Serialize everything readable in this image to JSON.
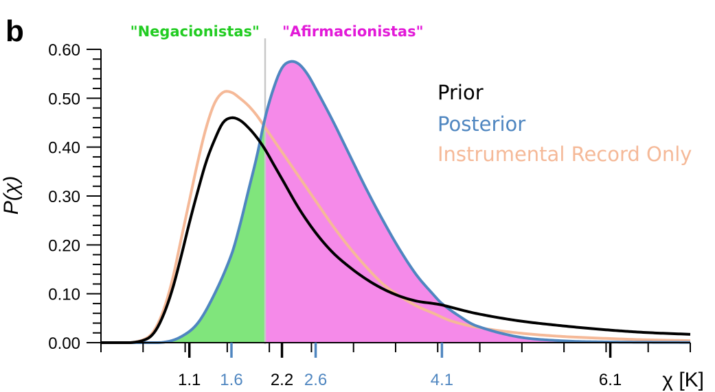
{
  "chart_data": {
    "type": "line",
    "panel_label": "b",
    "ylabel": "P(χ)",
    "xlabel": "χ [K]",
    "xlim": [
      0.05,
      7.05
    ],
    "ylim": [
      0,
      0.6
    ],
    "y_ticks": [
      "0.00",
      "0.10",
      "0.20",
      "0.30",
      "0.40",
      "0.50",
      "0.60"
    ],
    "x_tick_labels": [
      {
        "value": 1.1,
        "label": "1.1",
        "color": "#000000"
      },
      {
        "value": 1.6,
        "label": "1.6",
        "color": "#4f86c0"
      },
      {
        "value": 2.2,
        "label": "2.2",
        "color": "#000000"
      },
      {
        "value": 2.6,
        "label": "2.6",
        "color": "#4f86c0"
      },
      {
        "value": 4.1,
        "label": "4.1",
        "color": "#4f86c0"
      },
      {
        "value": 6.1,
        "label": "6.1",
        "color": "#000000"
      }
    ],
    "cutoff": 2.0,
    "regions": [
      {
        "label": "\"Negacionistas\"",
        "color": "#22cc22",
        "fill": "#80e57c"
      },
      {
        "label": "\"Afirmacionistas\"",
        "color": "#e21ad8",
        "fill": "#f58ae9"
      }
    ],
    "series": [
      {
        "name": "Prior",
        "color": "#000000",
        "x": [
          0.05,
          0.4,
          0.6,
          0.7,
          0.8,
          0.9,
          1.0,
          1.1,
          1.2,
          1.3,
          1.4,
          1.5,
          1.6,
          1.7,
          1.8,
          1.9,
          2.0,
          2.1,
          2.2,
          2.4,
          2.6,
          2.8,
          3.0,
          3.2,
          3.4,
          3.6,
          3.8,
          4.0,
          4.1,
          4.5,
          5.0,
          5.5,
          6.0,
          6.5,
          7.05
        ],
        "y": [
          0.0,
          0.0,
          0.008,
          0.025,
          0.06,
          0.11,
          0.175,
          0.245,
          0.31,
          0.37,
          0.415,
          0.45,
          0.46,
          0.455,
          0.44,
          0.42,
          0.395,
          0.365,
          0.335,
          0.275,
          0.225,
          0.185,
          0.155,
          0.13,
          0.11,
          0.095,
          0.085,
          0.08,
          0.077,
          0.06,
          0.045,
          0.035,
          0.027,
          0.021,
          0.017
        ]
      },
      {
        "name": "Posterior",
        "color": "#4f86c0",
        "x": [
          0.05,
          0.5,
          0.8,
          1.0,
          1.2,
          1.4,
          1.6,
          1.7,
          1.8,
          1.9,
          2.0,
          2.1,
          2.2,
          2.3,
          2.4,
          2.5,
          2.6,
          2.8,
          3.0,
          3.2,
          3.4,
          3.6,
          3.8,
          4.0,
          4.1,
          4.3,
          4.5,
          5.0,
          5.5,
          6.0,
          7.05
        ],
        "y": [
          0.0,
          0.0,
          0.001,
          0.012,
          0.04,
          0.1,
          0.18,
          0.24,
          0.31,
          0.38,
          0.46,
          0.52,
          0.562,
          0.575,
          0.57,
          0.55,
          0.52,
          0.455,
          0.385,
          0.315,
          0.25,
          0.19,
          0.138,
          0.098,
          0.08,
          0.055,
          0.035,
          0.012,
          0.004,
          0.0015,
          0.0005
        ]
      },
      {
        "name": "Instrumental Record Only",
        "color": "#f5b998",
        "x": [
          0.05,
          0.4,
          0.6,
          0.7,
          0.8,
          0.9,
          1.0,
          1.1,
          1.2,
          1.3,
          1.4,
          1.5,
          1.6,
          1.7,
          1.8,
          1.9,
          2.0,
          2.2,
          2.4,
          2.6,
          2.8,
          3.0,
          3.2,
          3.4,
          3.6,
          3.8,
          4.0,
          4.2,
          4.5,
          5.0,
          5.5,
          6.0,
          6.5,
          7.05
        ],
        "y": [
          0.0,
          0.0,
          0.01,
          0.03,
          0.07,
          0.13,
          0.21,
          0.29,
          0.37,
          0.44,
          0.49,
          0.512,
          0.512,
          0.5,
          0.485,
          0.465,
          0.44,
          0.39,
          0.34,
          0.29,
          0.24,
          0.195,
          0.155,
          0.12,
          0.095,
          0.075,
          0.06,
          0.045,
          0.032,
          0.02,
          0.013,
          0.009,
          0.006,
          0.004
        ]
      }
    ]
  }
}
